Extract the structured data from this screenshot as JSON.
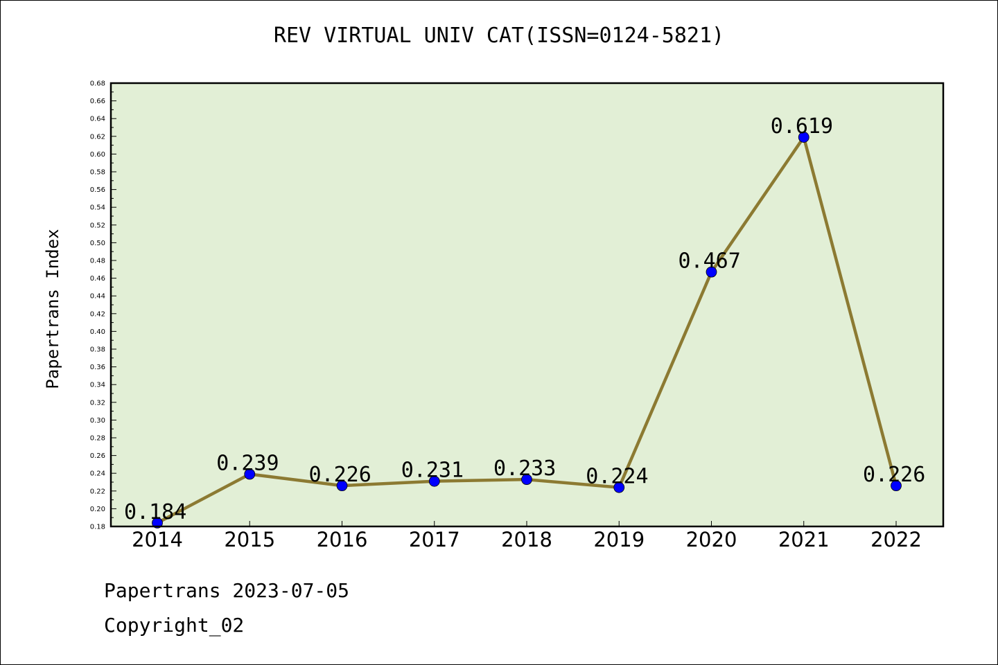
{
  "chart_data": {
    "type": "line",
    "title": "REV VIRTUAL UNIV CAT(ISSN=0124-5821)",
    "xlabel": "",
    "ylabel": "Papertrans Index",
    "categories": [
      "2014",
      "2015",
      "2016",
      "2017",
      "2018",
      "2019",
      "2020",
      "2021",
      "2022"
    ],
    "series": [
      {
        "values": [
          0.184,
          0.239,
          0.226,
          0.231,
          0.233,
          0.224,
          0.467,
          0.619,
          0.226
        ],
        "labels": [
          "0.184",
          "0.239",
          "0.226",
          "0.231",
          "0.233",
          "0.224",
          "0.467",
          "0.619",
          "0.226"
        ]
      }
    ],
    "ylim": [
      0.18,
      0.68
    ],
    "yticks": [
      "0.18",
      "0.20",
      "0.22",
      "0.24",
      "0.26",
      "0.28",
      "0.30",
      "0.32",
      "0.34",
      "0.36",
      "0.38",
      "0.40",
      "0.42",
      "0.44",
      "0.46",
      "0.48",
      "0.50",
      "0.52",
      "0.54",
      "0.56",
      "0.58",
      "0.60",
      "0.62",
      "0.64",
      "0.66",
      "0.68"
    ],
    "grid": false,
    "legend": "none"
  },
  "colors": {
    "plot_background": "#e2efd6",
    "line": "#8c7a32",
    "marker": "#0000ff"
  },
  "footer": {
    "date_line": "Papertrans 2023-07-05",
    "copyright": "Copyright_02"
  }
}
